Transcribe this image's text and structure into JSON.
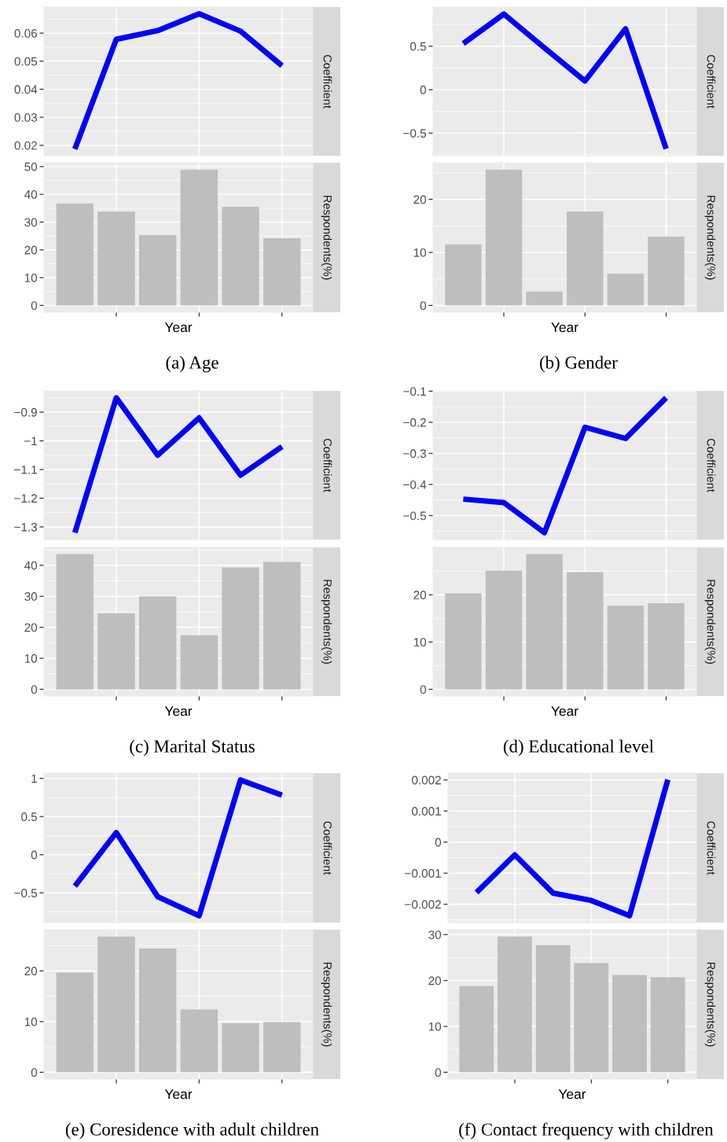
{
  "chart_data": [
    {
      "type": "line",
      "categories": [
        null,
        null,
        null,
        null,
        null,
        null
      ],
      "series": [
        {
          "color": "#0000ff",
          "values": [
            0.0187,
            0.0578,
            0.0609,
            0.0669,
            0.0607,
            0.0484
          ]
        }
      ],
      "ylabel": "Coefficient",
      "ylim": [
        0.0163,
        0.0693
      ],
      "yticks": [
        0.02,
        0.03,
        0.04,
        0.05,
        0.06
      ],
      "grid": true,
      "tick_labels": "y"
    },
    {
      "type": "bar",
      "categories": [
        null,
        null,
        null,
        null,
        null,
        null
      ],
      "series": [
        {
          "color": "#bebebe",
          "values": [
            36.7,
            33.8,
            25.3,
            48.9,
            35.5,
            24.2
          ]
        }
      ],
      "xlabel": "Year",
      "ylabel": "Respondents(%)",
      "ylim": [
        -2.45,
        51.35
      ],
      "yticks": [
        0,
        10,
        20,
        30,
        40,
        50
      ],
      "grid": true,
      "annotations": [
        "(a) Age"
      ]
    },
    {
      "type": "line",
      "categories": [
        null,
        null,
        null,
        null,
        null,
        null
      ],
      "series": [
        {
          "color": "#0000ff",
          "values": [
            0.53,
            0.87,
            0.48,
            0.1,
            0.7,
            -0.68
          ]
        }
      ],
      "ylabel": "Coefficient",
      "ylim": [
        -0.76,
        0.95
      ],
      "yticks": [
        {
          "value": -0.5,
          "label": "−0.5"
        },
        0,
        0.5
      ],
      "grid": true,
      "tick_labels": "y"
    },
    {
      "type": "bar",
      "categories": [
        null,
        null,
        null,
        null,
        null,
        null
      ],
      "series": [
        {
          "color": "#bebebe",
          "values": [
            11.5,
            25.6,
            2.6,
            17.7,
            6.0,
            13.0
          ]
        }
      ],
      "xlabel": "Year",
      "ylabel": "Respondents(%)",
      "ylim": [
        -1.28,
        26.88
      ],
      "yticks": [
        0,
        10,
        20
      ],
      "grid": true,
      "annotations": [
        "(b) Gender"
      ]
    },
    {
      "type": "line",
      "categories": [
        null,
        null,
        null,
        null,
        null,
        null
      ],
      "series": [
        {
          "color": "#0000ff",
          "values": [
            -1.32,
            -0.85,
            -1.05,
            -0.92,
            -1.12,
            -1.02
          ]
        }
      ],
      "ylabel": "Coefficient",
      "ylim": [
        -1.344,
        -0.826
      ],
      "yticks": [
        {
          "value": -1.3,
          "label": "−1.3"
        },
        {
          "value": -1.2,
          "label": "−1.2"
        },
        {
          "value": -1.1,
          "label": "−1.1"
        },
        {
          "value": -1,
          "label": "−1"
        },
        {
          "value": -0.9,
          "label": "−0.9"
        }
      ],
      "grid": true,
      "tick_labels": "y"
    },
    {
      "type": "bar",
      "categories": [
        null,
        null,
        null,
        null,
        null,
        null
      ],
      "series": [
        {
          "color": "#bebebe",
          "values": [
            43.6,
            24.5,
            30.0,
            17.4,
            39.3,
            41.1
          ]
        }
      ],
      "xlabel": "Year",
      "ylabel": "Respondents(%)",
      "ylim": [
        -2.18,
        45.78
      ],
      "yticks": [
        0,
        10,
        20,
        30,
        40
      ],
      "grid": true,
      "annotations": [
        "(c) Marital Status"
      ]
    },
    {
      "type": "line",
      "categories": [
        null,
        null,
        null,
        null,
        null,
        null
      ],
      "series": [
        {
          "color": "#0000ff",
          "values": [
            -0.447,
            -0.458,
            -0.555,
            -0.216,
            -0.252,
            -0.121
          ]
        }
      ],
      "ylabel": "Coefficient",
      "ylim": [
        -0.577,
        -0.099
      ],
      "yticks": [
        {
          "value": -0.5,
          "label": "−0.5"
        },
        {
          "value": -0.4,
          "label": "−0.4"
        },
        {
          "value": -0.3,
          "label": "−0.3"
        },
        {
          "value": -0.2,
          "label": "−0.2"
        },
        {
          "value": -0.1,
          "label": "−0.1"
        }
      ],
      "grid": true,
      "tick_labels": "y"
    },
    {
      "type": "bar",
      "categories": [
        null,
        null,
        null,
        null,
        null,
        null
      ],
      "series": [
        {
          "color": "#bebebe",
          "values": [
            20.3,
            25.1,
            28.6,
            24.8,
            17.7,
            18.2
          ]
        }
      ],
      "xlabel": "Year",
      "ylabel": "Respondents(%)",
      "ylim": [
        -1.43,
        30.03
      ],
      "yticks": [
        0,
        10,
        20
      ],
      "grid": true,
      "annotations": [
        "(d) Educational level"
      ]
    },
    {
      "type": "line",
      "categories": [
        null,
        null,
        null,
        null,
        null,
        null
      ],
      "series": [
        {
          "color": "#0000ff",
          "values": [
            -0.41,
            0.29,
            -0.55,
            -0.8,
            0.98,
            0.78
          ]
        }
      ],
      "ylabel": "Coefficient",
      "ylim": [
        -0.889,
        1.069
      ],
      "yticks": [
        {
          "value": -0.5,
          "label": "−0.5"
        },
        0,
        0.5,
        1
      ],
      "grid": true,
      "tick_labels": "y"
    },
    {
      "type": "bar",
      "categories": [
        null,
        null,
        null,
        null,
        null,
        null
      ],
      "series": [
        {
          "color": "#bebebe",
          "values": [
            19.7,
            26.8,
            24.4,
            12.4,
            9.7,
            9.9
          ]
        }
      ],
      "xlabel": "Year",
      "ylabel": "Respondents(%)",
      "ylim": [
        -1.34,
        28.14
      ],
      "yticks": [
        0,
        10,
        20
      ],
      "grid": true,
      "annotations": [
        "(e) Coresidence with adult children"
      ]
    },
    {
      "type": "line",
      "categories": [
        null,
        null,
        null,
        null,
        null,
        null
      ],
      "series": [
        {
          "color": "#0000ff",
          "values": [
            -0.00162,
            -0.00041,
            -0.00164,
            -0.00188,
            -0.00237,
            0.00201
          ]
        }
      ],
      "ylabel": "Coefficient",
      "ylim": [
        -0.00259,
        0.00222
      ],
      "yticks": [
        {
          "value": -0.002,
          "label": "−0.002"
        },
        {
          "value": -0.001,
          "label": "−0.001"
        },
        0,
        0.001,
        0.002
      ],
      "grid": true,
      "tick_labels": "y"
    },
    {
      "type": "bar",
      "categories": [
        null,
        null,
        null,
        null,
        null,
        null
      ],
      "series": [
        {
          "color": "#bebebe",
          "values": [
            18.8,
            29.6,
            27.7,
            23.8,
            21.2,
            20.7
          ]
        }
      ],
      "xlabel": "Year",
      "ylabel": "Respondents(%)",
      "ylim": [
        -1.48,
        31.08
      ],
      "yticks": [
        0,
        10,
        20,
        30
      ],
      "grid": true,
      "annotations": [
        "(f) Contact frequency with children"
      ]
    }
  ]
}
